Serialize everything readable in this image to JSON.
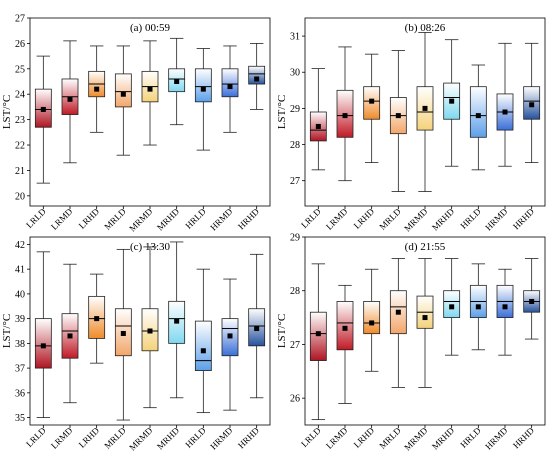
{
  "chart_data": [
    {
      "type": "boxplot",
      "title": "(a) 00:59",
      "ylabel": "LST/°C",
      "ylim": [
        19.6,
        27
      ],
      "yticks": [
        20,
        21,
        22,
        23,
        24,
        25,
        26,
        27
      ],
      "categories": [
        "LRLD",
        "LRMD",
        "LRHD",
        "MRLD",
        "MRMD",
        "MRHD",
        "HRLD",
        "HRMD",
        "HRHD"
      ],
      "boxes": [
        {
          "whisker_low": 20.5,
          "q1": 22.7,
          "median": 23.4,
          "q3": 24.2,
          "whisker_high": 25.5,
          "mean": 23.4
        },
        {
          "whisker_low": 21.3,
          "q1": 23.2,
          "median": 23.9,
          "q3": 24.6,
          "whisker_high": 26.1,
          "mean": 23.8
        },
        {
          "whisker_low": 22.5,
          "q1": 23.9,
          "median": 24.4,
          "q3": 24.9,
          "whisker_high": 25.9,
          "mean": 24.2
        },
        {
          "whisker_low": 21.6,
          "q1": 23.5,
          "median": 24.1,
          "q3": 24.8,
          "whisker_high": 25.9,
          "mean": 24.0
        },
        {
          "whisker_low": 22.0,
          "q1": 23.7,
          "median": 24.3,
          "q3": 24.9,
          "whisker_high": 26.1,
          "mean": 24.2
        },
        {
          "whisker_low": 22.8,
          "q1": 24.1,
          "median": 24.6,
          "q3": 25.0,
          "whisker_high": 26.2,
          "mean": 24.5
        },
        {
          "whisker_low": 21.8,
          "q1": 23.7,
          "median": 24.3,
          "q3": 25.0,
          "whisker_high": 25.8,
          "mean": 24.2
        },
        {
          "whisker_low": 22.5,
          "q1": 23.9,
          "median": 24.4,
          "q3": 25.0,
          "whisker_high": 25.9,
          "mean": 24.3
        },
        {
          "whisker_low": 23.4,
          "q1": 24.4,
          "median": 24.8,
          "q3": 25.1,
          "whisker_high": 26.0,
          "mean": 24.6
        }
      ]
    },
    {
      "type": "boxplot",
      "title": "(b) 08:26",
      "ylabel": "LST/°C",
      "ylim": [
        26.3,
        31.5
      ],
      "yticks": [
        27,
        28,
        29,
        30,
        31
      ],
      "categories": [
        "LRLD",
        "LRMD",
        "LRHD",
        "MRLD",
        "MRMD",
        "MRHD",
        "HRLD",
        "HRMD",
        "HRHD"
      ],
      "boxes": [
        {
          "whisker_low": 27.3,
          "q1": 28.1,
          "median": 28.4,
          "q3": 28.9,
          "whisker_high": 30.1,
          "mean": 28.5
        },
        {
          "whisker_low": 27.0,
          "q1": 28.2,
          "median": 28.8,
          "q3": 29.5,
          "whisker_high": 30.7,
          "mean": 28.8
        },
        {
          "whisker_low": 27.5,
          "q1": 28.7,
          "median": 29.2,
          "q3": 29.6,
          "whisker_high": 30.5,
          "mean": 29.2
        },
        {
          "whisker_low": 26.7,
          "q1": 28.3,
          "median": 28.8,
          "q3": 29.3,
          "whisker_high": 30.6,
          "mean": 28.8
        },
        {
          "whisker_low": 26.7,
          "q1": 28.4,
          "median": 28.9,
          "q3": 29.6,
          "whisker_high": 31.1,
          "mean": 29.0
        },
        {
          "whisker_low": 27.4,
          "q1": 28.7,
          "median": 29.3,
          "q3": 29.7,
          "whisker_high": 30.9,
          "mean": 29.2
        },
        {
          "whisker_low": 27.3,
          "q1": 28.2,
          "median": 28.8,
          "q3": 29.6,
          "whisker_high": 30.2,
          "mean": 28.8
        },
        {
          "whisker_low": 27.4,
          "q1": 28.4,
          "median": 28.9,
          "q3": 29.4,
          "whisker_high": 30.8,
          "mean": 28.9
        },
        {
          "whisker_low": 27.5,
          "q1": 28.7,
          "median": 29.2,
          "q3": 29.6,
          "whisker_high": 30.8,
          "mean": 29.1
        }
      ]
    },
    {
      "type": "boxplot",
      "title": "(c) 13:30",
      "ylabel": "LST/°C",
      "ylim": [
        34.7,
        42.3
      ],
      "yticks": [
        35,
        36,
        37,
        38,
        39,
        40,
        41,
        42
      ],
      "categories": [
        "LRLD",
        "LRMD",
        "LRHD",
        "MRLD",
        "MRMD",
        "MRHD",
        "HRLD",
        "HRMD",
        "HRHD"
      ],
      "boxes": [
        {
          "whisker_low": 35.0,
          "q1": 37.0,
          "median": 37.9,
          "q3": 39.0,
          "whisker_high": 41.7,
          "mean": 37.9
        },
        {
          "whisker_low": 35.6,
          "q1": 37.4,
          "median": 38.5,
          "q3": 39.2,
          "whisker_high": 41.2,
          "mean": 38.3
        },
        {
          "whisker_low": 37.2,
          "q1": 38.2,
          "median": 39.0,
          "q3": 39.9,
          "whisker_high": 40.8,
          "mean": 39.0
        },
        {
          "whisker_low": 34.9,
          "q1": 37.5,
          "median": 38.7,
          "q3": 39.4,
          "whisker_high": 41.8,
          "mean": 38.4
        },
        {
          "whisker_low": 35.4,
          "q1": 37.7,
          "median": 38.5,
          "q3": 39.4,
          "whisker_high": 41.9,
          "mean": 38.5
        },
        {
          "whisker_low": 35.8,
          "q1": 38.0,
          "median": 39.0,
          "q3": 39.7,
          "whisker_high": 42.1,
          "mean": 38.9
        },
        {
          "whisker_low": 35.2,
          "q1": 36.9,
          "median": 37.3,
          "q3": 38.9,
          "whisker_high": 41.0,
          "mean": 37.7
        },
        {
          "whisker_low": 35.3,
          "q1": 37.5,
          "median": 38.6,
          "q3": 39.0,
          "whisker_high": 40.6,
          "mean": 38.3
        },
        {
          "whisker_low": 35.8,
          "q1": 37.9,
          "median": 38.7,
          "q3": 39.4,
          "whisker_high": 41.6,
          "mean": 38.6
        }
      ]
    },
    {
      "type": "boxplot",
      "title": "(d) 21:55",
      "ylabel": "LST/°C",
      "ylim": [
        25.5,
        29.0
      ],
      "yticks": [
        26,
        27,
        28,
        29
      ],
      "categories": [
        "LRLD",
        "LRMD",
        "LRHD",
        "MRLD",
        "MRMD",
        "MRHD",
        "HRLD",
        "HRMD",
        "HRHD"
      ],
      "boxes": [
        {
          "whisker_low": 25.6,
          "q1": 26.7,
          "median": 27.2,
          "q3": 27.6,
          "whisker_high": 28.5,
          "mean": 27.2
        },
        {
          "whisker_low": 25.9,
          "q1": 26.9,
          "median": 27.4,
          "q3": 27.8,
          "whisker_high": 28.1,
          "mean": 27.3
        },
        {
          "whisker_low": 26.5,
          "q1": 27.2,
          "median": 27.4,
          "q3": 27.8,
          "whisker_high": 28.4,
          "mean": 27.4
        },
        {
          "whisker_low": 26.2,
          "q1": 27.2,
          "median": 27.7,
          "q3": 28.0,
          "whisker_high": 28.6,
          "mean": 27.6
        },
        {
          "whisker_low": 26.2,
          "q1": 27.3,
          "median": 27.6,
          "q3": 27.9,
          "whisker_high": 28.6,
          "mean": 27.5
        },
        {
          "whisker_low": 26.8,
          "q1": 27.5,
          "median": 27.8,
          "q3": 28.0,
          "whisker_high": 28.6,
          "mean": 27.7
        },
        {
          "whisker_low": 26.9,
          "q1": 27.5,
          "median": 27.8,
          "q3": 28.1,
          "whisker_high": 28.5,
          "mean": 27.7
        },
        {
          "whisker_low": 26.8,
          "q1": 27.5,
          "median": 27.8,
          "q3": 28.1,
          "whisker_high": 28.4,
          "mean": 27.7
        },
        {
          "whisker_low": 27.1,
          "q1": 27.6,
          "median": 27.8,
          "q3": 28.0,
          "whisker_high": 28.6,
          "mean": 27.8
        }
      ]
    }
  ],
  "colors": {
    "LRLD": "#b01422",
    "LRMD": "#c01a26",
    "LRHD": "#ef8a2a",
    "MRLD": "#f2a66a",
    "MRMD": "#f4d27a",
    "MRHD": "#7fd8ef",
    "HRLD": "#5d9fe8",
    "HRMD": "#3b6fd8",
    "HRHD": "#26529c",
    "mean_marker": "#000000",
    "median_line": "#000000",
    "box_edge": "#222222"
  }
}
